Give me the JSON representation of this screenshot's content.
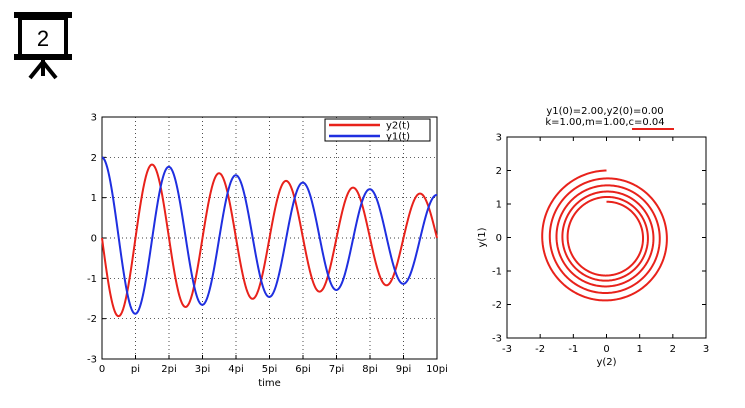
{
  "slide_icon": {
    "number": "2",
    "icon": "presentation-board-icon"
  },
  "chart_data": [
    {
      "type": "line",
      "title": "",
      "xlabel": "time",
      "ylabel": "",
      "xlim": [
        0,
        10
      ],
      "ylim": [
        -3,
        3
      ],
      "x_unit": "pi",
      "xticks": [
        0,
        1,
        2,
        3,
        4,
        5,
        6,
        7,
        8,
        9,
        10
      ],
      "xtick_labels": [
        "0",
        "pi",
        "2pi",
        "3pi",
        "4pi",
        "5pi",
        "6pi",
        "7pi",
        "8pi",
        "9pi",
        "10pi"
      ],
      "yticks": [
        -3,
        -2,
        -1,
        0,
        1,
        2,
        3
      ],
      "ytick_labels": [
        "-3",
        "-2",
        "-1",
        "0",
        "1",
        "2",
        "3"
      ],
      "grid": true,
      "legend": "top-right",
      "model": {
        "k": 1.0,
        "m": 1.0,
        "c": 0.04,
        "y1_0": 2.0,
        "y2_0": 0.0
      },
      "series": [
        {
          "name": "y2(t)",
          "color": "#e8221b",
          "formula": "y2 = -2*exp(-0.02*t)*sin(t)"
        },
        {
          "name": "y1(t)",
          "color": "#1f2fe0",
          "formula": "y1 = 2*exp(-0.02*t)*cos(t)"
        }
      ]
    },
    {
      "type": "line",
      "title_lines": [
        "y1(0)=2.00,y2(0)=0.00",
        "k=1.00,m=1.00,c=0.04"
      ],
      "xlabel": "y(2)",
      "ylabel": "y(1)",
      "xlim": [
        -3,
        3
      ],
      "ylim": [
        -3,
        3
      ],
      "xticks": [
        -3,
        -2,
        -1,
        0,
        1,
        2,
        3
      ],
      "yticks": [
        -3,
        -2,
        -1,
        0,
        1,
        2,
        3
      ],
      "grid": false,
      "underline_color": "#e8221b",
      "series": [
        {
          "name": "",
          "color": "#e8221b",
          "x": "y2(t)",
          "y": "y1(t)"
        }
      ]
    }
  ]
}
